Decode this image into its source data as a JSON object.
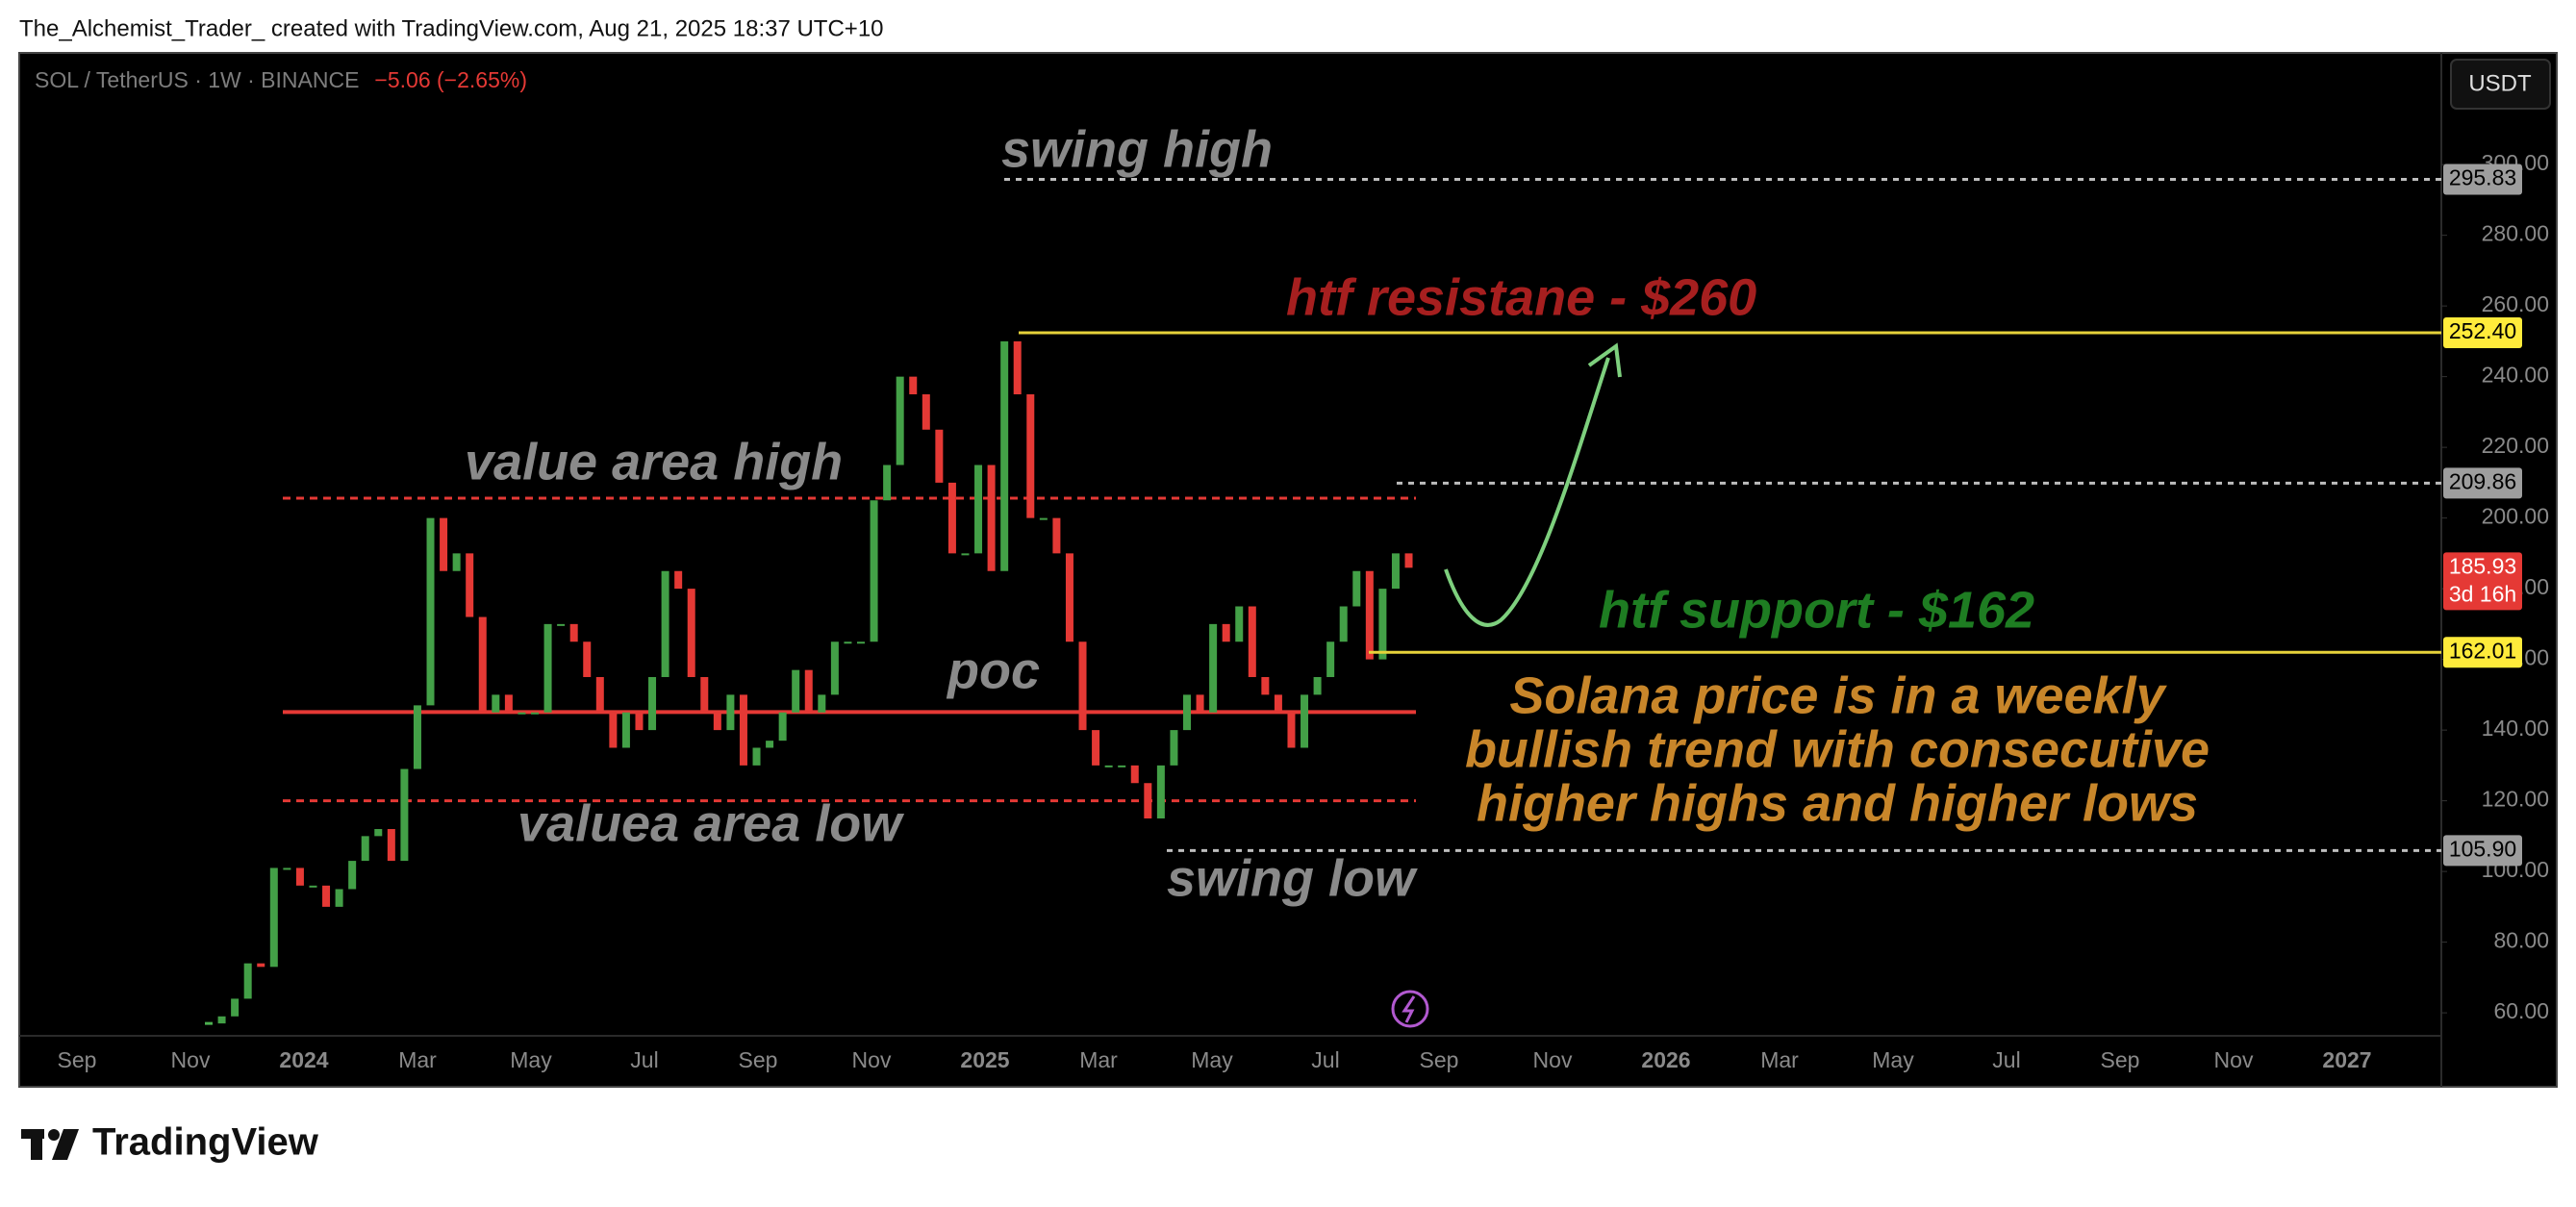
{
  "header": "The_Alchemist_Trader_ created with TradingView.com, Aug 21, 2025 18:37 UTC+10",
  "chart_data": {
    "type": "candlestick",
    "symbol": "SOL / TetherUS · 1W · BINANCE",
    "change": "−5.06 (−2.65%)",
    "currency": "USDT",
    "values": [
      57,
      59,
      64,
      74,
      73,
      101,
      101,
      96,
      96,
      90,
      95,
      103,
      110,
      112,
      103,
      129,
      147,
      200,
      185,
      190,
      172,
      145,
      150,
      145,
      145,
      145,
      170,
      170,
      165,
      155,
      145,
      135,
      145,
      140,
      155,
      185,
      180,
      155,
      145,
      140,
      150,
      130,
      135,
      137,
      145,
      157,
      145,
      150,
      165,
      165,
      165,
      205,
      215,
      240,
      235,
      225,
      210,
      190,
      190,
      215,
      185,
      250,
      235,
      200,
      200,
      190,
      165,
      140,
      130,
      130,
      130,
      125,
      115,
      130,
      140,
      150,
      145,
      170,
      165,
      175,
      155,
      150,
      145,
      135,
      150,
      155,
      165,
      175,
      185,
      160,
      180,
      190,
      185.93
    ],
    "ylim": [
      53.5,
      331.6
    ],
    "yticks": [
      {
        "value": 60,
        "label": "60.00"
      },
      {
        "value": 80,
        "label": "80.00"
      },
      {
        "value": 100,
        "label": "100.00"
      },
      {
        "value": 120,
        "label": "120.00"
      },
      {
        "value": 140,
        "label": "140.00"
      },
      {
        "value": 160,
        "label": "160.00"
      },
      {
        "value": 180,
        "label": "180.00"
      },
      {
        "value": 200,
        "label": "200.00"
      },
      {
        "value": 220,
        "label": "220.00"
      },
      {
        "value": 240,
        "label": "240.00"
      },
      {
        "value": 260,
        "label": "260.00"
      },
      {
        "value": 280,
        "label": "280.00"
      },
      {
        "value": 300,
        "label": "300.00"
      }
    ],
    "x_labels": [
      "Sep",
      "Nov",
      "2024",
      "Mar",
      "May",
      "Jul",
      "Sep",
      "Nov",
      "2025",
      "Mar",
      "May",
      "Jul",
      "Sep",
      "Nov",
      "2026",
      "Mar",
      "May",
      "Jul",
      "Sep",
      "Nov",
      "2027"
    ],
    "price_labels": [
      295.83,
      {
        "value": 252.4,
        "label": "252.40"
      },
      209.86,
      185.93,
      162.01,
      {
        "value": 105.9,
        "label": "105.90"
      }
    ],
    "countdown": "3d 16h",
    "value_area_high": 205.6,
    "poc": 145.1,
    "value_area_low": 120,
    "annotations": [
      "swing high",
      "htf resistane - $260",
      "value area high",
      "poc",
      "valuea area low",
      "swing low",
      "htf support - $162"
    ],
    "note_lines": [
      "Solana price is in a weekly",
      "bullish trend with consecutive",
      "higher highs and higher lows"
    ]
  },
  "footer": "TradingView"
}
